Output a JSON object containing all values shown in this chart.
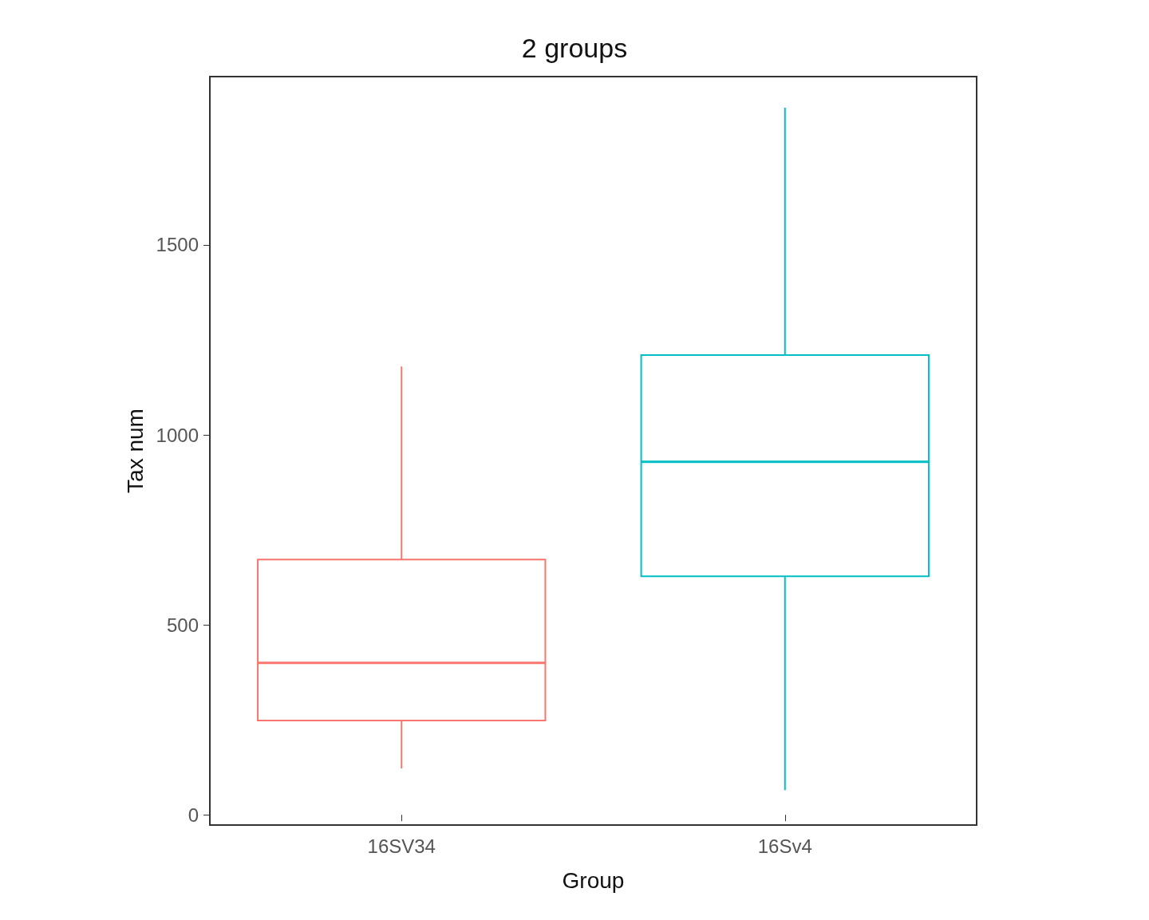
{
  "chart_data": {
    "type": "box",
    "title": "2 groups",
    "xlabel": "Group",
    "ylabel": "Tax num",
    "categories": [
      "16SV34",
      "16Sv4"
    ],
    "boxes": [
      {
        "low": 122,
        "q1": 248,
        "median": 400,
        "q3": 672,
        "high": 1180
      },
      {
        "low": 65,
        "q1": 628,
        "median": 929,
        "q3": 1210,
        "high": 1861
      }
    ],
    "colors": [
      "#f8766d",
      "#00bfc4"
    ],
    "ylim": [
      -27,
      1943
    ],
    "yticks": [
      0,
      500,
      1000,
      1500
    ],
    "grid": false
  }
}
